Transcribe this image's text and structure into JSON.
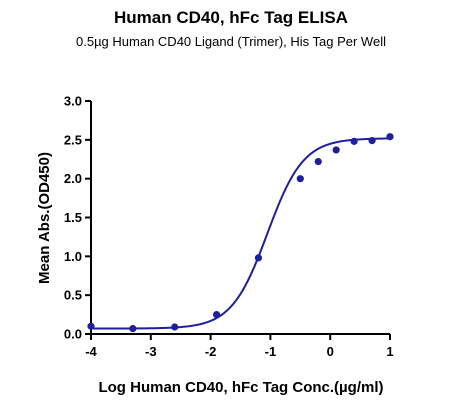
{
  "chart_data": {
    "type": "scatter",
    "title": "Human CD40, hFc Tag ELISA",
    "subtitle": "0.5µg Human CD40 Ligand (Trimer), His Tag Per Well",
    "xlabel": "Log Human CD40, hFc Tag Conc.(µg/ml)",
    "ylabel": "Mean Abs.(OD450)",
    "xlim": [
      -4,
      1
    ],
    "ylim": [
      0,
      3.0
    ],
    "xticks": [
      "-4",
      "-3",
      "-2",
      "-1",
      "0",
      "1"
    ],
    "yticks": [
      "0.0",
      "0.5",
      "1.0",
      "1.5",
      "2.0",
      "2.5",
      "3.0"
    ],
    "grid": false,
    "series": [
      {
        "x": [
          -4.0,
          -3.3,
          -2.6,
          -1.9,
          -1.2,
          -0.5,
          -0.2,
          0.1,
          0.4,
          0.7,
          1.0
        ],
        "y": [
          0.1,
          0.07,
          0.09,
          0.25,
          0.98,
          2.0,
          2.22,
          2.37,
          2.48,
          2.49,
          2.54
        ],
        "color": "#1f1f9e"
      }
    ],
    "fit": {
      "model": "4PL",
      "bottom": 0.07,
      "top": 2.52,
      "logEC50": -1.05,
      "hill": 1.45
    }
  }
}
